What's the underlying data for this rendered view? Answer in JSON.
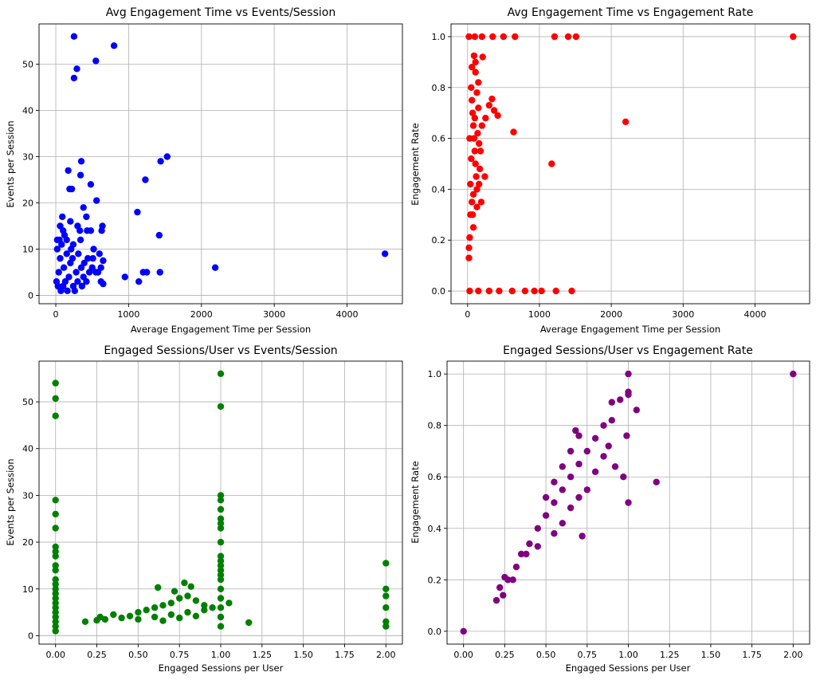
{
  "chart_data": [
    {
      "type": "scatter",
      "title": "Avg Engagement Time vs Events/Session",
      "xlabel": "Average Engagement Time per Session",
      "ylabel": "Events per Session",
      "xlim": [
        -230,
        4760
      ],
      "ylim": [
        -1.8,
        58.7
      ],
      "xticks": [
        0,
        1000,
        2000,
        3000,
        4000
      ],
      "xtick_labels": [
        "0",
        "1000",
        "2000",
        "3000",
        "4000"
      ],
      "yticks": [
        0,
        10,
        20,
        30,
        40,
        50
      ],
      "ytick_labels": [
        "0",
        "10",
        "20",
        "30",
        "40",
        "50"
      ],
      "grid": true,
      "color": "#0000ff",
      "points": [
        [
          250,
          56
        ],
        [
          800,
          54
        ],
        [
          550,
          50.7
        ],
        [
          290,
          49
        ],
        [
          250,
          47
        ],
        [
          1530,
          30
        ],
        [
          1440,
          29
        ],
        [
          350,
          29
        ],
        [
          340,
          26
        ],
        [
          1230,
          25
        ],
        [
          480,
          24
        ],
        [
          170,
          27
        ],
        [
          190,
          23
        ],
        [
          220,
          23
        ],
        [
          560,
          20.5
        ],
        [
          380,
          19
        ],
        [
          1120,
          18
        ],
        [
          90,
          17
        ],
        [
          420,
          17
        ],
        [
          200,
          16
        ],
        [
          300,
          15
        ],
        [
          640,
          15
        ],
        [
          630,
          14
        ],
        [
          100,
          14
        ],
        [
          330,
          14
        ],
        [
          430,
          14
        ],
        [
          480,
          14
        ],
        [
          1420,
          13
        ],
        [
          50,
          12
        ],
        [
          150,
          12
        ],
        [
          240,
          11
        ],
        [
          510,
          8
        ],
        [
          600,
          9
        ],
        [
          650,
          7.5
        ],
        [
          620,
          6
        ],
        [
          550,
          5
        ],
        [
          380,
          4
        ],
        [
          1140,
          3
        ],
        [
          1200,
          5
        ],
        [
          1250,
          5
        ],
        [
          1430,
          5
        ],
        [
          950,
          4
        ],
        [
          650,
          2.5
        ],
        [
          2190,
          6
        ],
        [
          4520,
          9
        ],
        [
          20,
          10
        ],
        [
          60,
          8
        ],
        [
          110,
          6
        ],
        [
          150,
          9
        ],
        [
          180,
          4
        ],
        [
          200,
          7
        ],
        [
          240,
          2
        ],
        [
          280,
          5
        ],
        [
          300,
          3
        ],
        [
          350,
          6
        ],
        [
          420,
          3
        ],
        [
          460,
          5
        ],
        [
          30,
          2
        ],
        [
          40,
          5
        ],
        [
          70,
          1
        ],
        [
          10,
          3
        ],
        [
          80,
          11
        ],
        [
          120,
          13
        ],
        [
          130,
          3
        ],
        [
          160,
          1
        ],
        [
          210,
          10
        ],
        [
          230,
          8
        ],
        [
          260,
          1
        ],
        [
          310,
          9
        ],
        [
          340,
          12
        ],
        [
          360,
          2
        ],
        [
          390,
          7
        ],
        [
          440,
          8
        ],
        [
          500,
          6
        ],
        [
          520,
          10
        ],
        [
          580,
          5
        ],
        [
          620,
          3
        ],
        [
          20,
          12
        ],
        [
          60,
          15
        ],
        [
          100,
          2
        ]
      ]
    },
    {
      "type": "scatter",
      "title": "Avg Engagement Time vs Engagement Rate",
      "xlabel": "Average Engagement Time per Session",
      "ylabel": "Engagement Rate",
      "xlim": [
        -230,
        4760
      ],
      "ylim": [
        -0.05,
        1.05
      ],
      "xticks": [
        0,
        1000,
        2000,
        3000,
        4000
      ],
      "xtick_labels": [
        "0",
        "1000",
        "2000",
        "3000",
        "4000"
      ],
      "yticks": [
        0,
        0.2,
        0.4,
        0.6,
        0.8,
        1.0
      ],
      "ytick_labels": [
        "0.0",
        "0.2",
        "0.4",
        "0.6",
        "0.8",
        "1.0"
      ],
      "grid": true,
      "color": "#ff0000",
      "points": [
        [
          4530,
          1.0
        ],
        [
          1210,
          1.0
        ],
        [
          1400,
          1.0
        ],
        [
          1510,
          1.0
        ],
        [
          660,
          1.0
        ],
        [
          500,
          1.0
        ],
        [
          350,
          1.0
        ],
        [
          200,
          1.0
        ],
        [
          100,
          1.0
        ],
        [
          20,
          1.0
        ],
        [
          2200,
          0.665
        ],
        [
          1170,
          0.5
        ],
        [
          640,
          0.625
        ],
        [
          340,
          0.755
        ],
        [
          370,
          0.71
        ],
        [
          300,
          0.73
        ],
        [
          420,
          0.69
        ],
        [
          250,
          0.68
        ],
        [
          210,
          0.92
        ],
        [
          90,
          0.925
        ],
        [
          110,
          0.9
        ],
        [
          240,
          0.45
        ],
        [
          190,
          0.35
        ],
        [
          80,
          0.25
        ],
        [
          30,
          0.21
        ],
        [
          20,
          0.17
        ],
        [
          20,
          0.13
        ],
        [
          1450,
          0.0
        ],
        [
          1030,
          0.0
        ],
        [
          1230,
          0.0
        ],
        [
          930,
          0.0
        ],
        [
          800,
          0.0
        ],
        [
          620,
          0.0
        ],
        [
          440,
          0.0
        ],
        [
          300,
          0.0
        ],
        [
          150,
          0.0
        ],
        [
          30,
          0.0
        ],
        [
          50,
          0.8
        ],
        [
          60,
          0.75
        ],
        [
          70,
          0.7
        ],
        [
          80,
          0.65
        ],
        [
          90,
          0.6
        ],
        [
          100,
          0.55
        ],
        [
          110,
          0.5
        ],
        [
          120,
          0.45
        ],
        [
          130,
          0.4
        ],
        [
          60,
          0.35
        ],
        [
          70,
          0.3
        ],
        [
          40,
          0.42
        ],
        [
          50,
          0.52
        ],
        [
          140,
          0.62
        ],
        [
          150,
          0.72
        ],
        [
          160,
          0.58
        ],
        [
          170,
          0.48
        ],
        [
          100,
          0.68
        ],
        [
          30,
          0.6
        ],
        [
          130,
          0.78
        ],
        [
          150,
          0.82
        ],
        [
          60,
          0.88
        ],
        [
          180,
          0.55
        ],
        [
          200,
          0.65
        ],
        [
          40,
          0.3
        ],
        [
          80,
          0.38
        ],
        [
          110,
          0.86
        ],
        [
          160,
          0.42
        ],
        [
          130,
          0.33
        ]
      ]
    },
    {
      "type": "scatter",
      "title": "Engaged Sessions/User vs Events/Session",
      "xlabel": "Engaged Sessions per User",
      "ylabel": "Events per Session",
      "xlim": [
        -0.1,
        2.1
      ],
      "ylim": [
        -1.8,
        58.7
      ],
      "xticks": [
        0,
        0.25,
        0.5,
        0.75,
        1.0,
        1.25,
        1.5,
        1.75,
        2.0
      ],
      "xtick_labels": [
        "0.00",
        "0.25",
        "0.50",
        "0.75",
        "1.00",
        "1.25",
        "1.50",
        "1.75",
        "2.00"
      ],
      "yticks": [
        0,
        10,
        20,
        30,
        40,
        50
      ],
      "ytick_labels": [
        "0",
        "10",
        "20",
        "30",
        "40",
        "50"
      ],
      "grid": true,
      "color": "#008000",
      "points": [
        [
          0,
          54
        ],
        [
          0,
          50.7
        ],
        [
          0,
          47
        ],
        [
          0,
          29
        ],
        [
          0,
          26
        ],
        [
          0,
          23
        ],
        [
          0,
          19
        ],
        [
          0,
          18
        ],
        [
          0,
          17
        ],
        [
          0,
          15
        ],
        [
          0,
          14
        ],
        [
          0,
          12
        ],
        [
          0,
          11
        ],
        [
          0,
          10
        ],
        [
          0,
          9
        ],
        [
          0,
          8
        ],
        [
          0,
          7
        ],
        [
          0,
          6
        ],
        [
          0,
          5
        ],
        [
          0,
          4
        ],
        [
          0,
          3
        ],
        [
          0,
          2
        ],
        [
          0,
          1
        ],
        [
          1,
          56
        ],
        [
          1,
          49
        ],
        [
          1,
          30
        ],
        [
          1,
          29
        ],
        [
          1,
          27
        ],
        [
          1,
          25
        ],
        [
          1,
          24
        ],
        [
          1,
          23
        ],
        [
          1,
          20
        ],
        [
          1,
          17
        ],
        [
          1,
          16
        ],
        [
          1,
          15
        ],
        [
          1,
          14
        ],
        [
          1,
          13
        ],
        [
          1,
          12
        ],
        [
          1,
          10
        ],
        [
          1,
          8
        ],
        [
          1,
          6
        ],
        [
          1,
          4
        ],
        [
          1,
          2
        ],
        [
          2,
          15.5
        ],
        [
          2,
          10
        ],
        [
          2,
          8.5
        ],
        [
          2,
          6
        ],
        [
          2,
          3
        ],
        [
          2,
          2
        ],
        [
          1.17,
          2.8
        ],
        [
          1.05,
          7
        ],
        [
          0.18,
          3
        ],
        [
          0.25,
          3.3
        ],
        [
          0.27,
          4
        ],
        [
          0.3,
          3.5
        ],
        [
          0.35,
          4.5
        ],
        [
          0.4,
          3.8
        ],
        [
          0.45,
          4.2
        ],
        [
          0.5,
          5
        ],
        [
          0.55,
          5.5
        ],
        [
          0.6,
          6
        ],
        [
          0.65,
          6.5
        ],
        [
          0.7,
          7
        ],
        [
          0.75,
          8
        ],
        [
          0.8,
          8.5
        ],
        [
          0.85,
          7.5
        ],
        [
          0.9,
          6.5
        ],
        [
          0.95,
          6
        ],
        [
          0.62,
          10.3
        ],
        [
          0.78,
          11.3
        ],
        [
          0.82,
          10.5
        ],
        [
          0.72,
          9.5
        ],
        [
          0.5,
          3.5
        ],
        [
          0.6,
          4
        ],
        [
          0.7,
          4.5
        ],
        [
          0.8,
          5
        ],
        [
          0.9,
          5.5
        ],
        [
          0.65,
          3.2
        ],
        [
          0.75,
          3.8
        ],
        [
          0.85,
          4.2
        ]
      ]
    },
    {
      "type": "scatter",
      "title": "Engaged Sessions/User vs Engagement Rate",
      "xlabel": "Engaged Sessions per User",
      "ylabel": "Engagement Rate",
      "xlim": [
        -0.1,
        2.1
      ],
      "ylim": [
        -0.05,
        1.05
      ],
      "xticks": [
        0,
        0.25,
        0.5,
        0.75,
        1.0,
        1.25,
        1.5,
        1.75,
        2.0
      ],
      "xtick_labels": [
        "0.00",
        "0.25",
        "0.50",
        "0.75",
        "1.00",
        "1.25",
        "1.50",
        "1.75",
        "2.00"
      ],
      "yticks": [
        0,
        0.2,
        0.4,
        0.6,
        0.8,
        1.0
      ],
      "ytick_labels": [
        "0.0",
        "0.2",
        "0.4",
        "0.6",
        "0.8",
        "1.0"
      ],
      "grid": true,
      "color": "#800080",
      "points": [
        [
          0,
          0
        ],
        [
          2,
          1
        ],
        [
          1,
          1
        ],
        [
          1,
          0.93
        ],
        [
          1,
          0.92
        ],
        [
          1,
          0.5
        ],
        [
          1.17,
          0.58
        ],
        [
          1.05,
          0.86
        ],
        [
          0.95,
          0.9
        ],
        [
          0.9,
          0.89
        ],
        [
          0.99,
          0.76
        ],
        [
          0.2,
          0.12
        ],
        [
          0.22,
          0.17
        ],
        [
          0.25,
          0.21
        ],
        [
          0.27,
          0.2
        ],
        [
          0.24,
          0.14
        ],
        [
          0.3,
          0.2
        ],
        [
          0.32,
          0.25
        ],
        [
          0.35,
          0.3
        ],
        [
          0.4,
          0.34
        ],
        [
          0.45,
          0.4
        ],
        [
          0.5,
          0.45
        ],
        [
          0.55,
          0.5
        ],
        [
          0.6,
          0.55
        ],
        [
          0.65,
          0.6
        ],
        [
          0.7,
          0.65
        ],
        [
          0.75,
          0.7
        ],
        [
          0.8,
          0.75
        ],
        [
          0.85,
          0.8
        ],
        [
          0.75,
          0.55
        ],
        [
          0.8,
          0.62
        ],
        [
          0.85,
          0.68
        ],
        [
          0.88,
          0.72
        ],
        [
          0.9,
          0.82
        ],
        [
          0.55,
          0.38
        ],
        [
          0.6,
          0.42
        ],
        [
          0.65,
          0.48
        ],
        [
          0.7,
          0.52
        ],
        [
          0.45,
          0.33
        ],
        [
          0.38,
          0.3
        ],
        [
          0.5,
          0.52
        ],
        [
          0.55,
          0.58
        ],
        [
          0.6,
          0.64
        ],
        [
          0.65,
          0.7
        ],
        [
          0.7,
          0.76
        ],
        [
          0.72,
          0.37
        ],
        [
          0.68,
          0.78
        ],
        [
          0.92,
          0.64
        ],
        [
          0.97,
          0.6
        ]
      ]
    }
  ]
}
